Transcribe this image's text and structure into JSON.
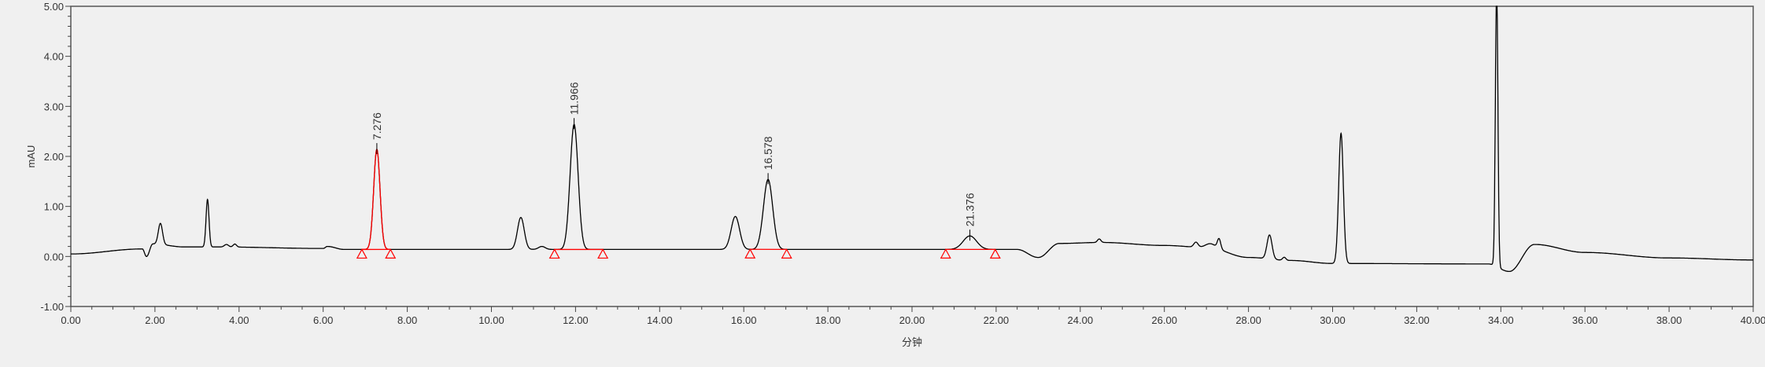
{
  "chart_data": {
    "type": "line",
    "title": "",
    "xlabel": "分钟",
    "ylabel": "mAU",
    "xlim": [
      0,
      40
    ],
    "ylim": [
      -1,
      5
    ],
    "x_ticks": [
      "0.00",
      "2.00",
      "4.00",
      "6.00",
      "8.00",
      "10.00",
      "12.00",
      "14.00",
      "16.00",
      "18.00",
      "20.00",
      "22.00",
      "24.00",
      "26.00",
      "28.00",
      "30.00",
      "32.00",
      "34.00",
      "36.00",
      "38.00",
      "40.00"
    ],
    "y_ticks": [
      "5.00",
      "4.00",
      "3.00",
      "2.00",
      "1.00",
      "0.00",
      "-1.00"
    ],
    "grid": false,
    "trace_color": "#000000",
    "integration_color": "#ff0000",
    "baseline_points": [
      [
        0,
        0.05
      ],
      [
        1.7,
        0.15
      ],
      [
        1.8,
        0.0
      ],
      [
        1.95,
        0.25
      ],
      [
        2.7,
        0.19
      ],
      [
        3.5,
        0.19
      ],
      [
        6.0,
        0.16
      ],
      [
        6.1,
        0.2
      ],
      [
        6.5,
        0.14
      ],
      [
        22.5,
        0.14
      ],
      [
        23.0,
        -0.02
      ],
      [
        23.5,
        0.26
      ],
      [
        24.5,
        0.28
      ],
      [
        26.0,
        0.22
      ],
      [
        27.0,
        0.18
      ],
      [
        28.0,
        -0.02
      ],
      [
        29.0,
        -0.08
      ],
      [
        30.0,
        -0.14
      ],
      [
        33.7,
        -0.15
      ],
      [
        34.2,
        -0.3
      ],
      [
        34.8,
        0.24
      ],
      [
        36.0,
        0.08
      ],
      [
        38.0,
        -0.03
      ],
      [
        40.0,
        -0.07
      ]
    ],
    "peaks": [
      {
        "rt": 2.13,
        "height": 0.42,
        "width": 0.05
      },
      {
        "rt": 3.25,
        "height": 0.95,
        "width": 0.035
      },
      {
        "rt": 3.7,
        "height": 0.05,
        "width": 0.05
      },
      {
        "rt": 3.9,
        "height": 0.06,
        "width": 0.04
      },
      {
        "rt": 7.276,
        "height": 2.0,
        "width": 0.075,
        "label": "7.276",
        "integrated": true,
        "start": 6.92,
        "end": 7.6
      },
      {
        "rt": 10.7,
        "height": 0.64,
        "width": 0.08
      },
      {
        "rt": 11.2,
        "height": 0.06,
        "width": 0.08
      },
      {
        "rt": 11.966,
        "height": 2.5,
        "width": 0.095,
        "label": "11.966",
        "integrated": true,
        "start": 11.5,
        "end": 12.65
      },
      {
        "rt": 15.8,
        "height": 0.66,
        "width": 0.1
      },
      {
        "rt": 16.578,
        "height": 1.4,
        "width": 0.11,
        "label": "16.578",
        "integrated": true,
        "start": 16.15,
        "end": 17.02
      },
      {
        "rt": 21.376,
        "height": 0.27,
        "width": 0.16,
        "label": "21.376",
        "integrated": true,
        "start": 20.8,
        "end": 21.98
      },
      {
        "rt": 24.45,
        "height": 0.07,
        "width": 0.04
      },
      {
        "rt": 26.75,
        "height": 0.1,
        "width": 0.05
      },
      {
        "rt": 27.3,
        "height": 0.2,
        "width": 0.04
      },
      {
        "rt": 27.1,
        "height": 0.08,
        "width": 0.12
      },
      {
        "rt": 28.5,
        "height": 0.48,
        "width": 0.06
      },
      {
        "rt": 28.85,
        "height": 0.06,
        "width": 0.04
      },
      {
        "rt": 30.2,
        "height": 2.6,
        "width": 0.055
      },
      {
        "rt": 33.9,
        "height": 5.6,
        "width": 0.03
      }
    ]
  }
}
